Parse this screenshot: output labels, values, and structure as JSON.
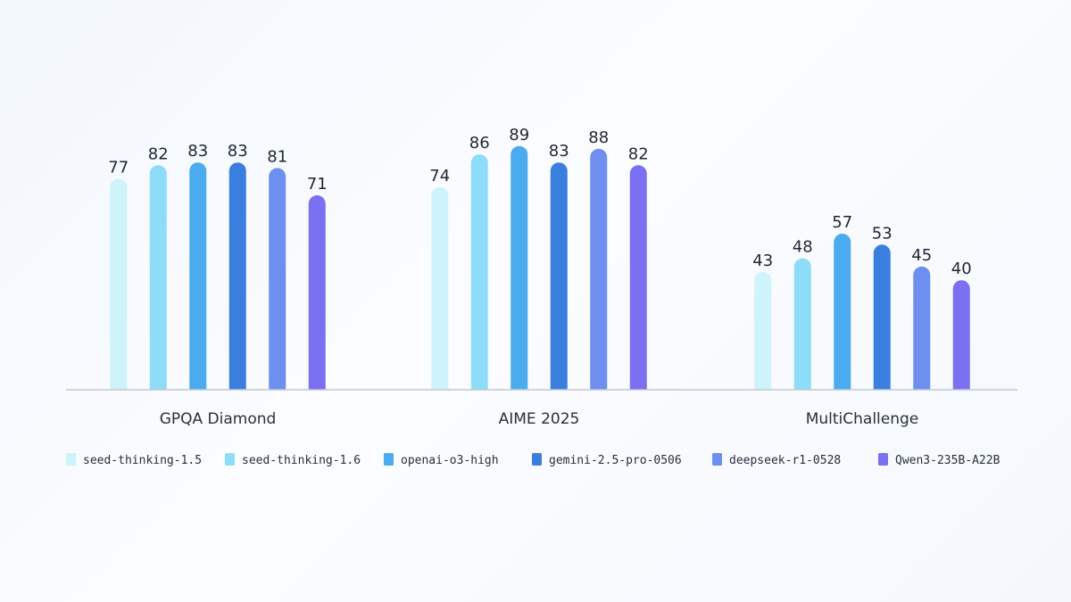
{
  "chart_data": {
    "type": "bar",
    "categories": [
      "GPQA Diamond",
      "AIME 2025",
      "MultiChallenge"
    ],
    "series": [
      {
        "name": "seed-thinking-1.5",
        "color": "#cdf3fb",
        "values": [
          77,
          74,
          43
        ]
      },
      {
        "name": "seed-thinking-1.6",
        "color": "#8dddf8",
        "values": [
          82,
          86,
          48
        ]
      },
      {
        "name": "openai-o3-high",
        "color": "#4aabee",
        "values": [
          83,
          89,
          57
        ]
      },
      {
        "name": "gemini-2.5-pro-0506",
        "color": "#3a7fdf",
        "values": [
          83,
          83,
          53
        ]
      },
      {
        "name": "deepseek-r1-0528",
        "color": "#6e8ff0",
        "values": [
          81,
          88,
          45
        ]
      },
      {
        "name": "Qwen3-235B-A22B",
        "color": "#7b6ff2",
        "values": [
          71,
          82,
          40
        ]
      }
    ],
    "legend_position": "bottom",
    "grid": false,
    "axis_line_color": "#c4c7cf"
  }
}
